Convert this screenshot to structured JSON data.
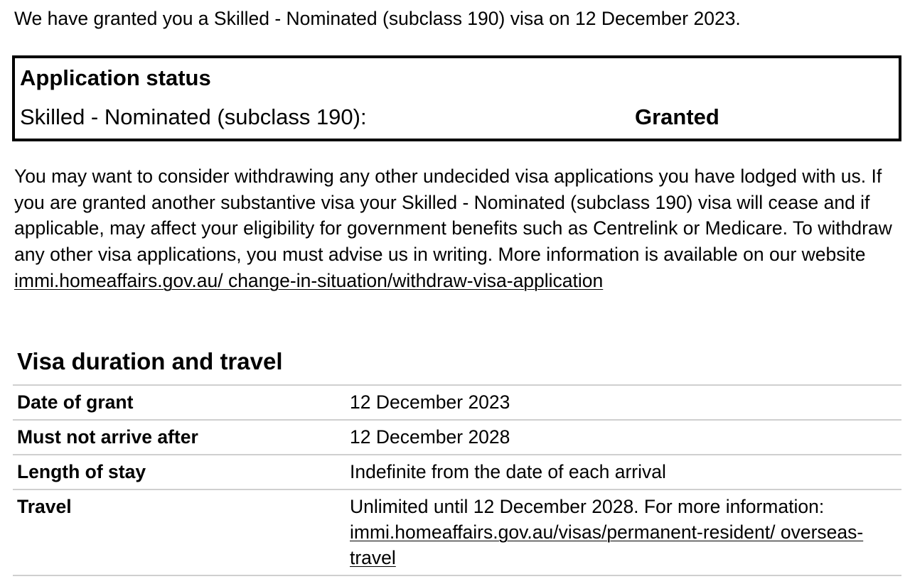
{
  "intro": "We have granted you a Skilled - Nominated (subclass 190) visa on 12 December 2023.",
  "application_status": {
    "title": "Application status",
    "label": "Skilled - Nominated (subclass 190):",
    "value": "Granted"
  },
  "notice": {
    "text": "You may want to consider withdrawing any other undecided visa applications you have lodged with us. If you are granted another substantive visa your Skilled - Nominated (subclass 190) visa will cease and if applicable, may affect your eligibility for government benefits such as Centrelink or Medicare. To withdraw any other visa applications, you must advise us in writing. More information is available on our website ",
    "link": "immi.homeaffairs.gov.au/ change-in-situation/withdraw-visa-application"
  },
  "visa_duration": {
    "title": "Visa duration and travel",
    "rows": [
      {
        "label": "Date of grant",
        "value": "12 December 2023"
      },
      {
        "label": "Must not arrive after",
        "value": "12 December 2028"
      },
      {
        "label": "Length of stay",
        "value": "Indefinite from the date of each arrival"
      },
      {
        "label": "Travel",
        "value": "Unlimited until 12 December 2028. For more information: ",
        "link": "immi.homeaffairs.gov.au/visas/permanent-resident/ overseas-travel"
      }
    ]
  }
}
